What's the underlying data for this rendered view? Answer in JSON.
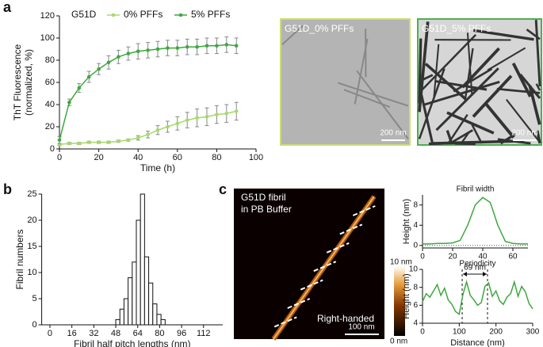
{
  "panel_letters": [
    "a",
    "b",
    "c"
  ],
  "chart_data": [
    {
      "type": "line",
      "xlabel": "Time (h)",
      "ylabel": [
        "ThT Fluorescence",
        "(normalized, %)"
      ],
      "legend_title": "G51D",
      "legend": "top",
      "markers": true,
      "x": [
        0,
        5,
        10,
        15,
        20,
        25,
        30,
        35,
        40,
        45,
        50,
        55,
        60,
        65,
        70,
        75,
        80,
        85,
        90
      ],
      "series": [
        {
          "name": "0% PFFs",
          "color": "#a5d96a",
          "values": [
            4,
            5,
            5,
            6,
            6,
            6,
            7,
            8,
            10,
            13,
            17,
            20,
            23,
            26,
            28,
            29,
            31,
            32,
            34
          ],
          "errors": [
            1,
            1,
            1,
            1,
            1,
            1,
            1,
            1,
            2,
            3,
            4,
            5,
            6,
            7,
            8,
            8,
            8,
            8,
            8
          ]
        },
        {
          "name": "5% PFFs",
          "color": "#3ea83e",
          "values": [
            8,
            42,
            55,
            65,
            72,
            78,
            83,
            86,
            88,
            89,
            90,
            91,
            91,
            92,
            92,
            93,
            93,
            94,
            93
          ],
          "errors": [
            3,
            3,
            4,
            5,
            5,
            6,
            6,
            6,
            7,
            7,
            7,
            7,
            7,
            7,
            7,
            7,
            7,
            7,
            7
          ]
        }
      ],
      "xlim": [
        0,
        100
      ],
      "xticks": [
        0,
        20,
        40,
        60,
        80,
        100
      ],
      "ylim": [
        0,
        120
      ],
      "yticks": [
        0,
        20,
        40,
        60,
        80,
        100,
        120
      ]
    },
    {
      "type": "histogram",
      "xlabel": "Fibril half pitch lengths (nm)",
      "ylabel": [
        "Fibril numbers"
      ],
      "bins": [
        48,
        51,
        54,
        57,
        60,
        63,
        66,
        69,
        72,
        75,
        78,
        81,
        84
      ],
      "counts": [
        1,
        3,
        5,
        9,
        12,
        20,
        25,
        13,
        8,
        4,
        2,
        1
      ],
      "color": "#ffffff",
      "xlim": [
        -6,
        126
      ],
      "xticks": [
        0,
        16,
        32,
        48,
        64,
        80,
        96,
        112
      ],
      "ylim": [
        0,
        25
      ],
      "yticks": [
        0,
        5,
        10,
        15,
        20,
        25
      ]
    },
    {
      "type": "line",
      "title": "Fibril width",
      "ylabel": [
        "Height (nm)"
      ],
      "hline": 0,
      "x": [
        0,
        5,
        10,
        15,
        20,
        25,
        30,
        35,
        40,
        45,
        50,
        55,
        60,
        65,
        70
      ],
      "series": [
        {
          "color": "#3ea83e",
          "values": [
            0.3,
            0.3,
            0.4,
            0.4,
            0.5,
            1,
            4,
            8,
            9.5,
            8.5,
            4,
            0.8,
            0.4,
            0.3,
            0.3
          ]
        }
      ],
      "xlim": [
        0,
        70
      ],
      "xticks": [
        0,
        20,
        40,
        60
      ],
      "ylim": [
        -0.5,
        10
      ],
      "yticks": [
        0,
        4,
        8
      ]
    },
    {
      "type": "line",
      "title": "Periodicity",
      "xlabel": "Distance (nm)",
      "ylabel": [
        "Height (nm)"
      ],
      "vlines": [
        108,
        177
      ],
      "annotation": "69 nm",
      "x": [
        0,
        10,
        20,
        30,
        40,
        50,
        60,
        70,
        80,
        90,
        100,
        110,
        120,
        130,
        140,
        150,
        160,
        170,
        180,
        190,
        200,
        210,
        220,
        230,
        240,
        250,
        260,
        270,
        280,
        290,
        300
      ],
      "series": [
        {
          "color": "#3ea83e",
          "values": [
            6.4,
            7.3,
            6.9,
            7.6,
            8.3,
            7.1,
            7.9,
            6.6,
            6.1,
            5.3,
            5.0,
            7.2,
            8.6,
            7.1,
            6.6,
            6.0,
            6.3,
            8.1,
            8.5,
            7.0,
            7.6,
            6.5,
            6.1,
            6.9,
            7.3,
            8.6,
            7.0,
            8.1,
            7.5,
            6.2,
            5.6
          ]
        }
      ],
      "xlim": [
        0,
        300
      ],
      "xticks": [
        0,
        100,
        200,
        300
      ],
      "ylim": [
        4,
        10
      ],
      "yticks": [
        4,
        6,
        8,
        10
      ]
    }
  ],
  "images": [
    {
      "label": "G51D_0% PFFs",
      "scale": "200 nm",
      "border": "#cddc72",
      "shade": "#b4b4b4"
    },
    {
      "label": "G51D_5% PFFs",
      "scale": "200 nm",
      "border": "#4caf50",
      "shade": "#d6d6d6"
    }
  ],
  "afm": {
    "label": [
      "G51D fibril",
      "in PB Buffer"
    ],
    "handedness": "Right-handed",
    "scale": "100 nm",
    "colorbar": [
      "10 nm",
      "0 nm"
    ]
  }
}
